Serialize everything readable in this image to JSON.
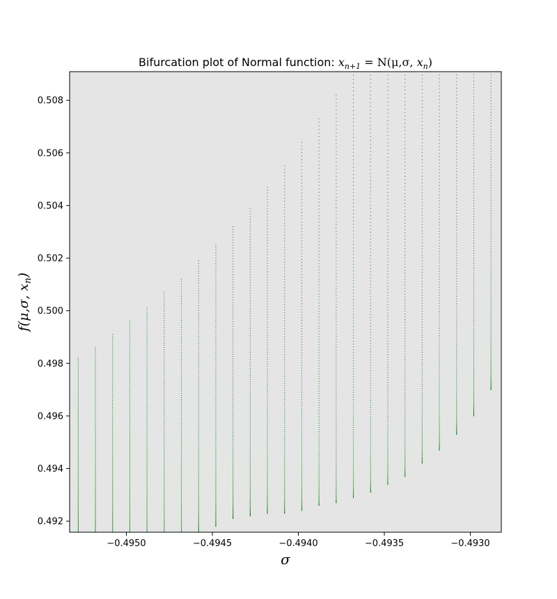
{
  "chart_data": {
    "type": "scatter",
    "title": "Bifurcation plot of Normal function: x_{n+1} = N(μ,σ, x_n)",
    "title_parts": {
      "prefix": "Bifurcation plot of Normal function: ",
      "x_sym": "x",
      "sub_n1": "n+1",
      "equals": " = N(μ,σ, ",
      "x_sym2": "x",
      "sub_n": "n",
      "close": ")"
    },
    "xlabel": "σ",
    "ylabel": "f(μ,σ, x_n)",
    "ylabel_parts": {
      "main": "f(μ,σ, x",
      "sub": "n",
      "close": ")"
    },
    "xlim": [
      -0.49533,
      -0.49282
    ],
    "ylim": [
      0.49158,
      0.50909
    ],
    "x_ticks": [
      -0.495,
      -0.4945,
      -0.494,
      -0.4935,
      -0.493
    ],
    "x_tick_labels": [
      "−0.4950",
      "−0.4945",
      "−0.4940",
      "−0.4935",
      "−0.4930"
    ],
    "y_ticks": [
      0.492,
      0.494,
      0.496,
      0.498,
      0.5,
      0.502,
      0.504,
      0.506,
      0.508
    ],
    "y_tick_labels": [
      "0.492",
      "0.494",
      "0.496",
      "0.498",
      "0.500",
      "0.502",
      "0.504",
      "0.506",
      "0.508"
    ],
    "grid": false,
    "legend": "none",
    "series": [
      {
        "sigma_values": [
          -0.49528,
          -0.49518,
          -0.49508,
          -0.49498,
          -0.49488,
          -0.49478,
          -0.49468,
          -0.49458,
          -0.49448,
          -0.49438,
          -0.49428,
          -0.49418,
          -0.49408,
          -0.49398,
          -0.49388,
          -0.49378,
          -0.49368,
          -0.49358,
          -0.49348,
          -0.49338,
          -0.49328,
          -0.49318,
          -0.49308,
          -0.49298,
          -0.49288
        ],
        "x_low": [
          0.491,
          0.491,
          0.491,
          0.491,
          0.491,
          0.491,
          0.4911,
          0.4915,
          0.4918,
          0.4921,
          0.4922,
          0.4923,
          0.4923,
          0.4924,
          0.4926,
          0.4927,
          0.4929,
          0.4931,
          0.4934,
          0.4937,
          0.4942,
          0.4947,
          0.4953,
          0.496,
          0.497
        ],
        "x_high": [
          0.4982,
          0.4986,
          0.4991,
          0.4996,
          0.5001,
          0.5007,
          0.5012,
          0.5019,
          0.5025,
          0.5032,
          0.5039,
          0.5047,
          0.5055,
          0.5064,
          0.5073,
          0.5082,
          0.5091,
          0.5091,
          0.5091,
          0.5091,
          0.5091,
          0.5091,
          0.5091,
          0.5091,
          0.5091
        ]
      }
    ],
    "colors": {
      "points": "#008000",
      "plot_background": "#e5e5e5",
      "figure_background": "#ffffff",
      "text": "#000000"
    }
  }
}
